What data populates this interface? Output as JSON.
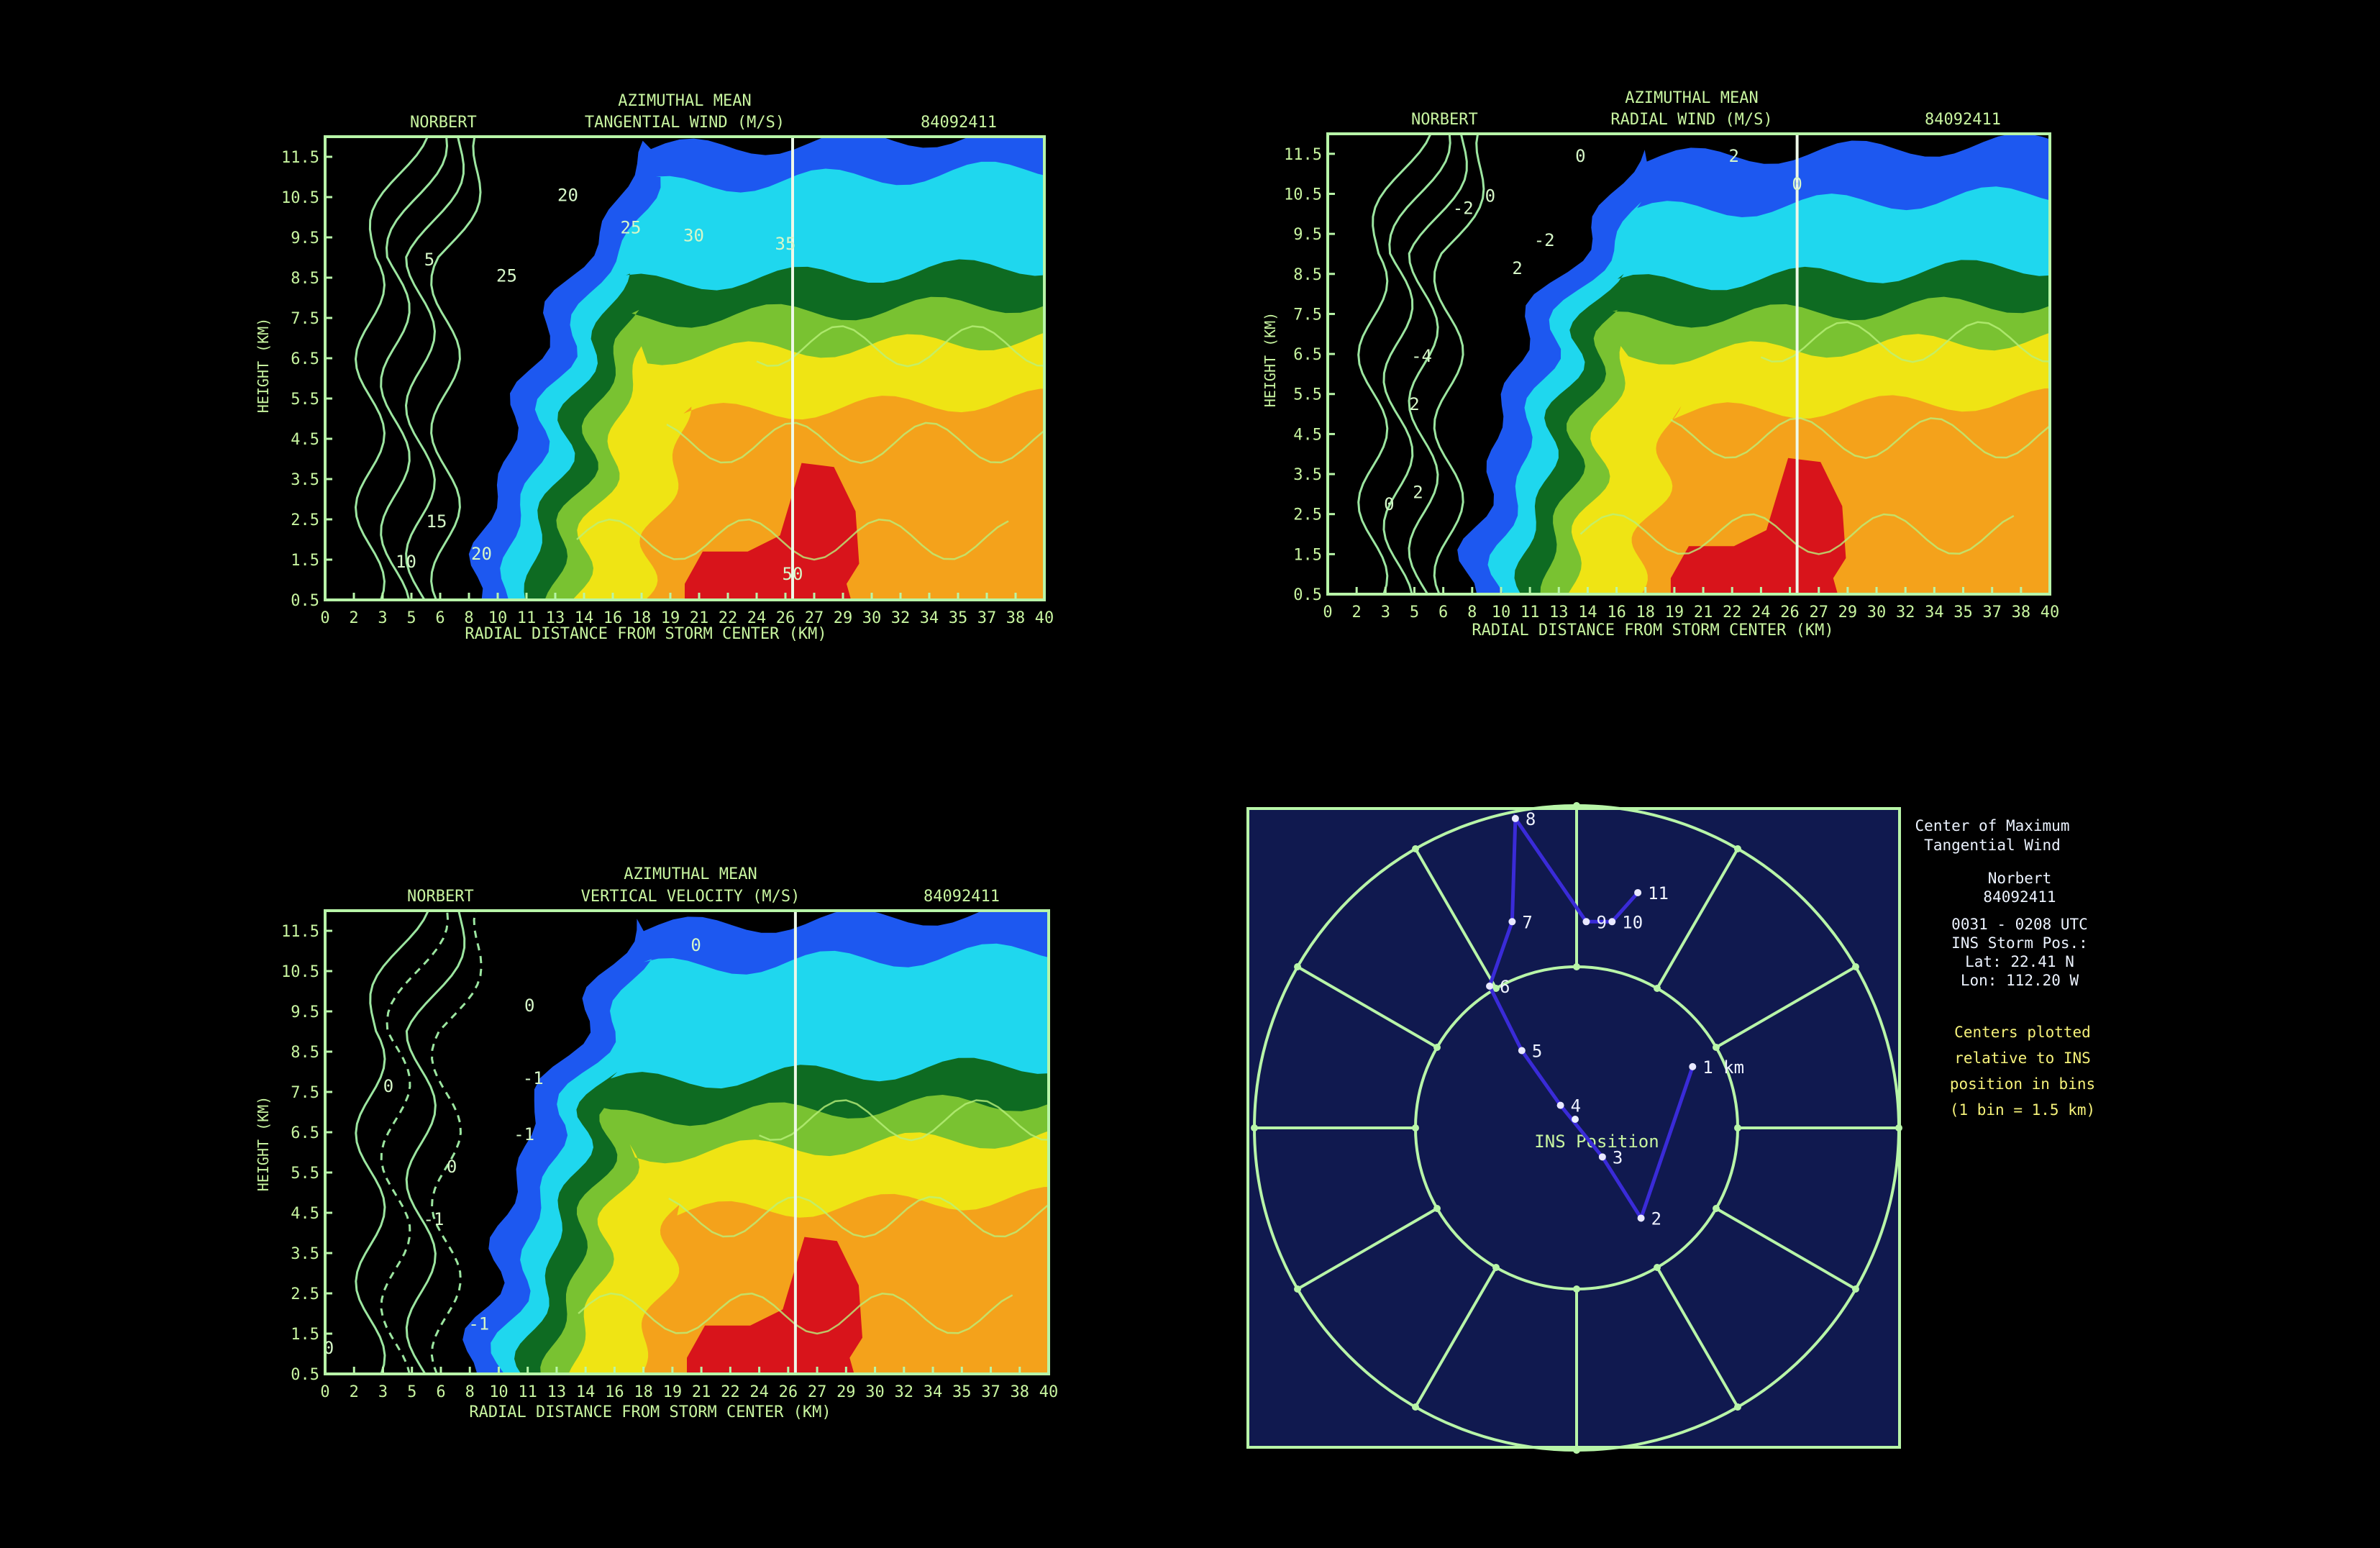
{
  "colors": {
    "background": "#000000",
    "frame": "#b8f5a8",
    "label_text": "#c8f5a0",
    "polar_background": "#10194f",
    "track": "#3a2bd8",
    "bands": [
      "#1d58f0",
      "#1fd7ee",
      "#0e6b22",
      "#79c231",
      "#efe414",
      "#f4a21b",
      "#d8141b"
    ]
  },
  "chart_data": [
    {
      "type": "heatmap",
      "storm": "NORBERT",
      "title_line1": "AZIMUTHAL MEAN",
      "title_line2": "TANGENTIAL WIND  (M/S)",
      "flight_id": "84092411",
      "xlabel": "RADIAL DISTANCE FROM STORM CENTER (KM)",
      "ylabel": "HEIGHT (KM)",
      "x_ticks": [
        "0",
        "2",
        "3",
        "5",
        "6",
        "8",
        "10",
        "11",
        "13",
        "14",
        "16",
        "18",
        "19",
        "21",
        "22",
        "24",
        "26",
        "27",
        "29",
        "30",
        "32",
        "34",
        "35",
        "37",
        "38",
        "40"
      ],
      "y_ticks": [
        "0.5",
        "1.5",
        "2.5",
        "3.5",
        "4.5",
        "5.5",
        "6.5",
        "7.5",
        "8.5",
        "9.5",
        "10.5",
        "11.5"
      ],
      "xlim": [
        0,
        40
      ],
      "ylim": [
        0.5,
        12
      ],
      "reference_line_x": 26,
      "contour_labels": [
        {
          "text": "10",
          "x": 4.5,
          "y": 1.3
        },
        {
          "text": "15",
          "x": 6.2,
          "y": 2.3
        },
        {
          "text": "20",
          "x": 8.7,
          "y": 1.5
        },
        {
          "text": "20",
          "x": 13.5,
          "y": 10.4
        },
        {
          "text": "25",
          "x": 10.1,
          "y": 8.4
        },
        {
          "text": "25",
          "x": 17.0,
          "y": 9.6
        },
        {
          "text": "30",
          "x": 20.5,
          "y": 9.4
        },
        {
          "text": "35",
          "x": 25.6,
          "y": 9.2
        },
        {
          "text": "50",
          "x": 26.0,
          "y": 1.0
        },
        {
          "text": "5",
          "x": 5.8,
          "y": 8.8
        }
      ],
      "bands": [
        {
          "color_index": 0,
          "threshold": "25"
        },
        {
          "color_index": 1,
          "threshold": "30"
        },
        {
          "color_index": 2,
          "threshold": "35"
        },
        {
          "color_index": 3,
          "threshold": "40"
        },
        {
          "color_index": 4,
          "threshold": "45"
        },
        {
          "color_index": 6,
          "threshold": "50"
        }
      ]
    },
    {
      "type": "heatmap",
      "storm": "NORBERT",
      "title_line1": "AZIMUTHAL MEAN",
      "title_line2": "RADIAL WIND  (M/S)",
      "flight_id": "84092411",
      "xlabel": "RADIAL DISTANCE FROM STORM CENTER (KM)",
      "ylabel": "HEIGHT (KM)",
      "x_ticks": [
        "0",
        "2",
        "3",
        "5",
        "6",
        "8",
        "10",
        "11",
        "13",
        "14",
        "16",
        "18",
        "19",
        "21",
        "22",
        "24",
        "26",
        "27",
        "29",
        "30",
        "32",
        "34",
        "35",
        "37",
        "38",
        "40"
      ],
      "y_ticks": [
        "0.5",
        "1.5",
        "2.5",
        "3.5",
        "4.5",
        "5.5",
        "6.5",
        "7.5",
        "8.5",
        "9.5",
        "10.5",
        "11.5"
      ],
      "xlim": [
        0,
        40
      ],
      "ylim": [
        0.5,
        12
      ],
      "reference_line_x": 26,
      "contour_labels": [
        {
          "text": "-2",
          "x": 7.5,
          "y": 10.0
        },
        {
          "text": "0",
          "x": 9.0,
          "y": 10.3
        },
        {
          "text": "-2",
          "x": 12.0,
          "y": 9.2
        },
        {
          "text": "2",
          "x": 10.5,
          "y": 8.5
        },
        {
          "text": "2",
          "x": 22.5,
          "y": 11.3
        },
        {
          "text": "0",
          "x": 14.0,
          "y": 11.3
        },
        {
          "text": "0",
          "x": 26.0,
          "y": 10.6
        },
        {
          "text": "-4",
          "x": 5.2,
          "y": 6.3
        },
        {
          "text": "2",
          "x": 4.8,
          "y": 5.1
        },
        {
          "text": "0",
          "x": 3.4,
          "y": 2.6
        },
        {
          "text": "2",
          "x": 5.0,
          "y": 2.9
        }
      ],
      "bands": [
        {
          "color_index": 0,
          "threshold": "-4"
        },
        {
          "color_index": 1,
          "threshold": "-2"
        },
        {
          "color_index": 2,
          "threshold": "0"
        },
        {
          "color_index": 3,
          "threshold": "2"
        },
        {
          "color_index": 4,
          "threshold": "4"
        },
        {
          "color_index": 6,
          "threshold": "6"
        }
      ]
    },
    {
      "type": "heatmap",
      "storm": "NORBERT",
      "title_line1": "AZIMUTHAL MEAN",
      "title_line2": "VERTICAL VELOCITY (M/S)",
      "flight_id": "84092411",
      "xlabel": "RADIAL DISTANCE FROM STORM CENTER (KM)",
      "ylabel": "HEIGHT (KM)",
      "x_ticks": [
        "0",
        "2",
        "3",
        "5",
        "6",
        "8",
        "10",
        "11",
        "13",
        "14",
        "16",
        "18",
        "19",
        "21",
        "22",
        "24",
        "26",
        "27",
        "29",
        "30",
        "32",
        "34",
        "35",
        "37",
        "38",
        "40"
      ],
      "y_ticks": [
        "0.5",
        "1.5",
        "2.5",
        "3.5",
        "4.5",
        "5.5",
        "6.5",
        "7.5",
        "8.5",
        "9.5",
        "10.5",
        "11.5"
      ],
      "xlim": [
        0,
        40
      ],
      "ylim": [
        0.5,
        12
      ],
      "reference_line_x": 26,
      "contour_labels": [
        {
          "text": "0",
          "x": 3.5,
          "y": 7.5
        },
        {
          "text": "0",
          "x": 7.0,
          "y": 5.5
        },
        {
          "text": "-1",
          "x": 6.0,
          "y": 4.2
        },
        {
          "text": "-1",
          "x": 11.5,
          "y": 7.7
        },
        {
          "text": "-1",
          "x": 11.0,
          "y": 6.3
        },
        {
          "text": "0",
          "x": 11.3,
          "y": 9.5
        },
        {
          "text": "0",
          "x": 20.5,
          "y": 11.0
        },
        {
          "text": "-1",
          "x": 8.5,
          "y": 1.6
        },
        {
          "text": "0",
          "x": 0.2,
          "y": 1.0
        }
      ],
      "bands": [
        {
          "color_index": 0,
          "threshold": "1"
        },
        {
          "color_index": 1,
          "threshold": "2"
        },
        {
          "color_index": 2,
          "threshold": "3"
        },
        {
          "color_index": 3,
          "threshold": "4"
        },
        {
          "color_index": 4,
          "threshold": "5"
        },
        {
          "color_index": 6,
          "threshold": "6"
        }
      ]
    },
    {
      "type": "scatter",
      "plot": "polar-center-track",
      "points": [
        {
          "label": "1 km",
          "x": 0.36,
          "y": 0.19
        },
        {
          "label": "2",
          "x": 0.2,
          "y": -0.28
        },
        {
          "label": "3",
          "x": 0.08,
          "y": -0.09
        },
        {
          "label": "4",
          "x": -0.05,
          "y": 0.07
        },
        {
          "label": "5",
          "x": -0.17,
          "y": 0.24
        },
        {
          "label": "6",
          "x": -0.27,
          "y": 0.44
        },
        {
          "label": "7",
          "x": -0.2,
          "y": 0.64
        },
        {
          "label": "8",
          "x": -0.19,
          "y": 0.96
        },
        {
          "label": "9",
          "x": 0.03,
          "y": 0.64
        },
        {
          "label": "10",
          "x": 0.11,
          "y": 0.64
        },
        {
          "label": "11",
          "x": 0.19,
          "y": 0.73
        }
      ],
      "center_label": "INS Position",
      "rings": [
        0.5,
        1.0
      ],
      "spokes": 12
    }
  ],
  "side_panel": {
    "title_line1": "Center of Maximum",
    "title_line2": "Tangential Wind",
    "storm": "Norbert",
    "flight_id": "84092411",
    "time_range": "0031 - 0208 UTC",
    "ins_header": "INS Storm Pos.:",
    "lat": "Lat:  22.41 N",
    "lon": "Lon: 112.20 W",
    "note_line1": "Centers plotted",
    "note_line2": "relative to INS",
    "note_line3": "position in bins",
    "note_line4": "(1 bin = 1.5 km)"
  }
}
